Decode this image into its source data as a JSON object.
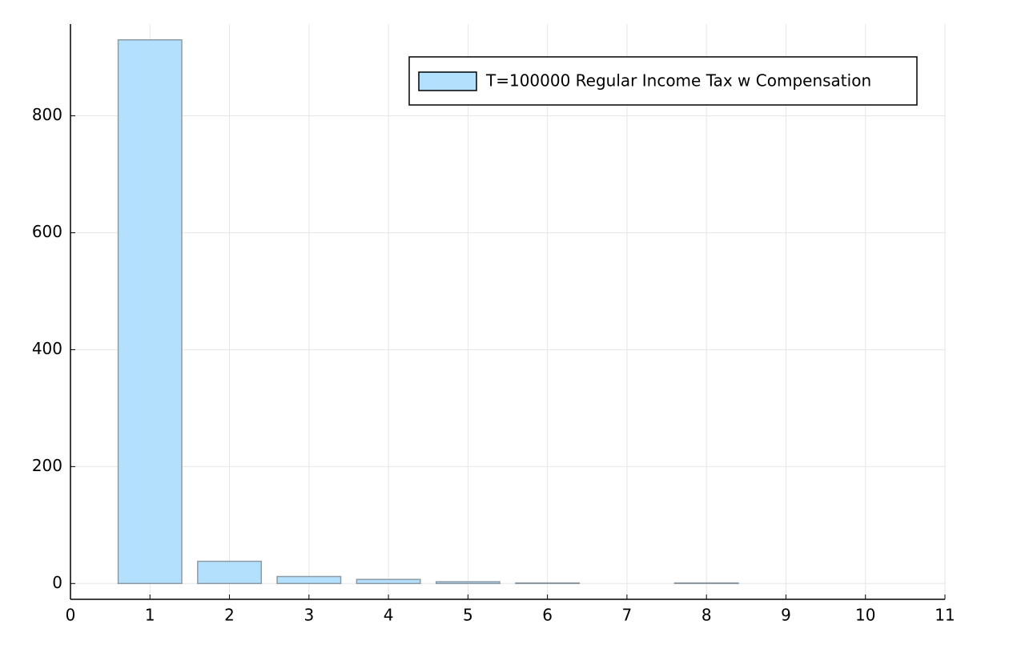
{
  "chart_data": {
    "type": "bar",
    "x": [
      1,
      2,
      3,
      4,
      5,
      6,
      7,
      8,
      9,
      10
    ],
    "series": [
      {
        "name": "T=100000 Regular Income Tax w Compensation",
        "color": "#b3e0fc",
        "values": [
          930,
          38,
          12,
          7,
          3,
          1,
          0,
          1,
          0,
          0
        ]
      }
    ],
    "xlim": [
      0,
      11
    ],
    "xticks": [
      0,
      1,
      2,
      3,
      4,
      5,
      6,
      7,
      8,
      9,
      10,
      11
    ],
    "ylim": [
      -27,
      957
    ],
    "yticks": [
      0,
      200,
      400,
      600,
      800
    ],
    "grid": true,
    "legend": "upper-right"
  }
}
